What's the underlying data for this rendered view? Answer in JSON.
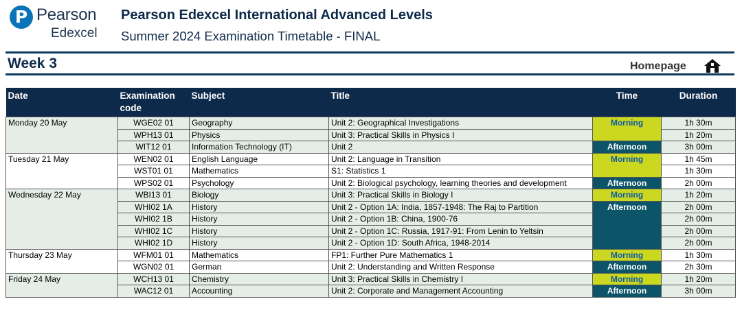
{
  "brand": {
    "mark": "P",
    "name": "Pearson",
    "sub": "Edexcel"
  },
  "header": {
    "title": "Pearson Edexcel International Advanced Levels",
    "subtitle": "Summer 2024 Examination Timetable - FINAL"
  },
  "week": "Week 3",
  "nav": {
    "homepage": "Homepage",
    "home_icon": "home-icon"
  },
  "colors": {
    "header": "#0e2a4a",
    "shade": "#e4eee6",
    "morning": "#ccd820",
    "afternoon": "#0c5468"
  },
  "table": {
    "headers": {
      "date": "Date",
      "code": "Examination code",
      "subject": "Subject",
      "title": "Title",
      "time": "Time",
      "duration": "Duration"
    },
    "groups": [
      {
        "date": "Monday 20 May",
        "rows": [
          {
            "code": "WGE02 01",
            "subject": "Geography",
            "title": "Unit 2: Geographical Investigations",
            "duration": "1h 30m"
          },
          {
            "code": "WPH13 01",
            "subject": "Physics",
            "title": "Unit 3: Practical Skills in Physics I",
            "duration": "1h 20m"
          },
          {
            "code": "WIT12 01",
            "subject": "Information Technology (IT)",
            "title": "Unit 2",
            "duration": "3h 00m"
          }
        ],
        "sessions": [
          {
            "label": "Morning",
            "span": 2
          },
          {
            "label": "Afternoon",
            "span": 1
          }
        ]
      },
      {
        "date": "Tuesday 21 May",
        "rows": [
          {
            "code": "WEN02 01",
            "subject": "English Language",
            "title": "Unit 2: Language in Transition",
            "duration": "1h 45m"
          },
          {
            "code": "WST01 01",
            "subject": "Mathematics",
            "title": "S1: Statistics 1",
            "duration": "1h 30m"
          },
          {
            "code": "WPS02 01",
            "subject": "Psychology",
            "title": "Unit 2: Biological psychology, learning theories and development",
            "duration": "2h 00m"
          }
        ],
        "sessions": [
          {
            "label": "Morning",
            "span": 2
          },
          {
            "label": "Afternoon",
            "span": 1
          }
        ]
      },
      {
        "date": "Wednesday 22 May",
        "rows": [
          {
            "code": "WBI13 01",
            "subject": "Biology",
            "title": "Unit 3: Practical Skills in Biology I",
            "duration": "1h 20m"
          },
          {
            "code": "WHI02 1A",
            "subject": "History",
            "title": "Unit 2 - Option 1A: India, 1857-1948: The Raj to Partition",
            "duration": "2h 00m"
          },
          {
            "code": "WHI02 1B",
            "subject": "History",
            "title": "Unit 2 - Option 1B: China, 1900-76",
            "duration": "2h 00m"
          },
          {
            "code": "WHI02 1C",
            "subject": "History",
            "title": "Unit 2 - Option 1C: Russia, 1917-91: From Lenin to Yeltsin",
            "duration": "2h 00m"
          },
          {
            "code": "WHI02 1D",
            "subject": "History",
            "title": "Unit 2 - Option 1D: South Africa, 1948-2014",
            "duration": "2h 00m"
          }
        ],
        "sessions": [
          {
            "label": "Morning",
            "span": 1
          },
          {
            "label": "Afternoon",
            "span": 4
          }
        ]
      },
      {
        "date": "Thursday 23 May",
        "rows": [
          {
            "code": "WFM01 01",
            "subject": "Mathematics",
            "title": "FP1: Further Pure Mathematics 1",
            "duration": "1h 30m"
          },
          {
            "code": "WGN02 01",
            "subject": "German",
            "title": "Unit 2: Understanding and Written Response",
            "duration": "2h 30m"
          }
        ],
        "sessions": [
          {
            "label": "Morning",
            "span": 1
          },
          {
            "label": "Afternoon",
            "span": 1
          }
        ]
      },
      {
        "date": "Friday 24 May",
        "rows": [
          {
            "code": "WCH13 01",
            "subject": "Chemistry",
            "title": "Unit 3: Practical Skills in Chemistry I",
            "duration": "1h 20m"
          },
          {
            "code": "WAC12 01",
            "subject": "Accounting",
            "title": "Unit 2: Corporate and Management Accounting",
            "duration": "3h 00m"
          }
        ],
        "sessions": [
          {
            "label": "Morning",
            "span": 1
          },
          {
            "label": "Afternoon",
            "span": 1
          }
        ]
      }
    ]
  }
}
